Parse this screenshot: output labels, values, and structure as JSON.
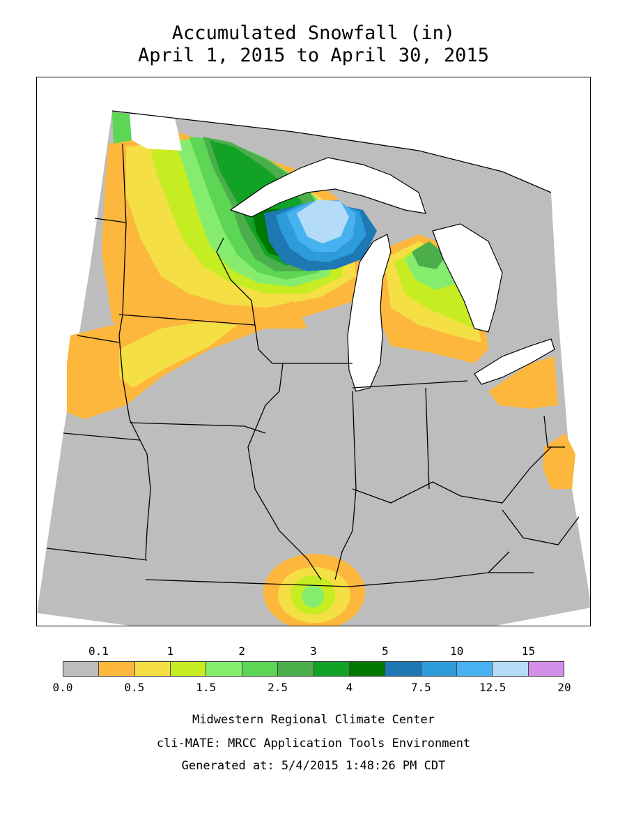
{
  "title": {
    "line1": "Accumulated Snowfall (in)",
    "line2": "April 1, 2015 to April 30, 2015"
  },
  "legend": {
    "colors": [
      "#bdbdbd",
      "#fdb73c",
      "#f4df44",
      "#c6ec22",
      "#86ec6e",
      "#5cd654",
      "#4bae4b",
      "#11a226",
      "#007800",
      "#1e78b4",
      "#2e9bda",
      "#48b2f0",
      "#b4dcf8",
      "#d28ee8"
    ],
    "top_labels": [
      "0.1",
      "1",
      "2",
      "3",
      "5",
      "10",
      "15"
    ],
    "bottom_labels": [
      "0.0",
      "0.5",
      "1.5",
      "2.5",
      "4",
      "7.5",
      "12.5",
      "20"
    ]
  },
  "credits": {
    "line1": "Midwestern Regional Climate Center",
    "line2": "cli-MATE: MRCC Application Tools Environment",
    "line3": "Generated at: 5/4/2015 1:48:26 PM CDT"
  }
}
